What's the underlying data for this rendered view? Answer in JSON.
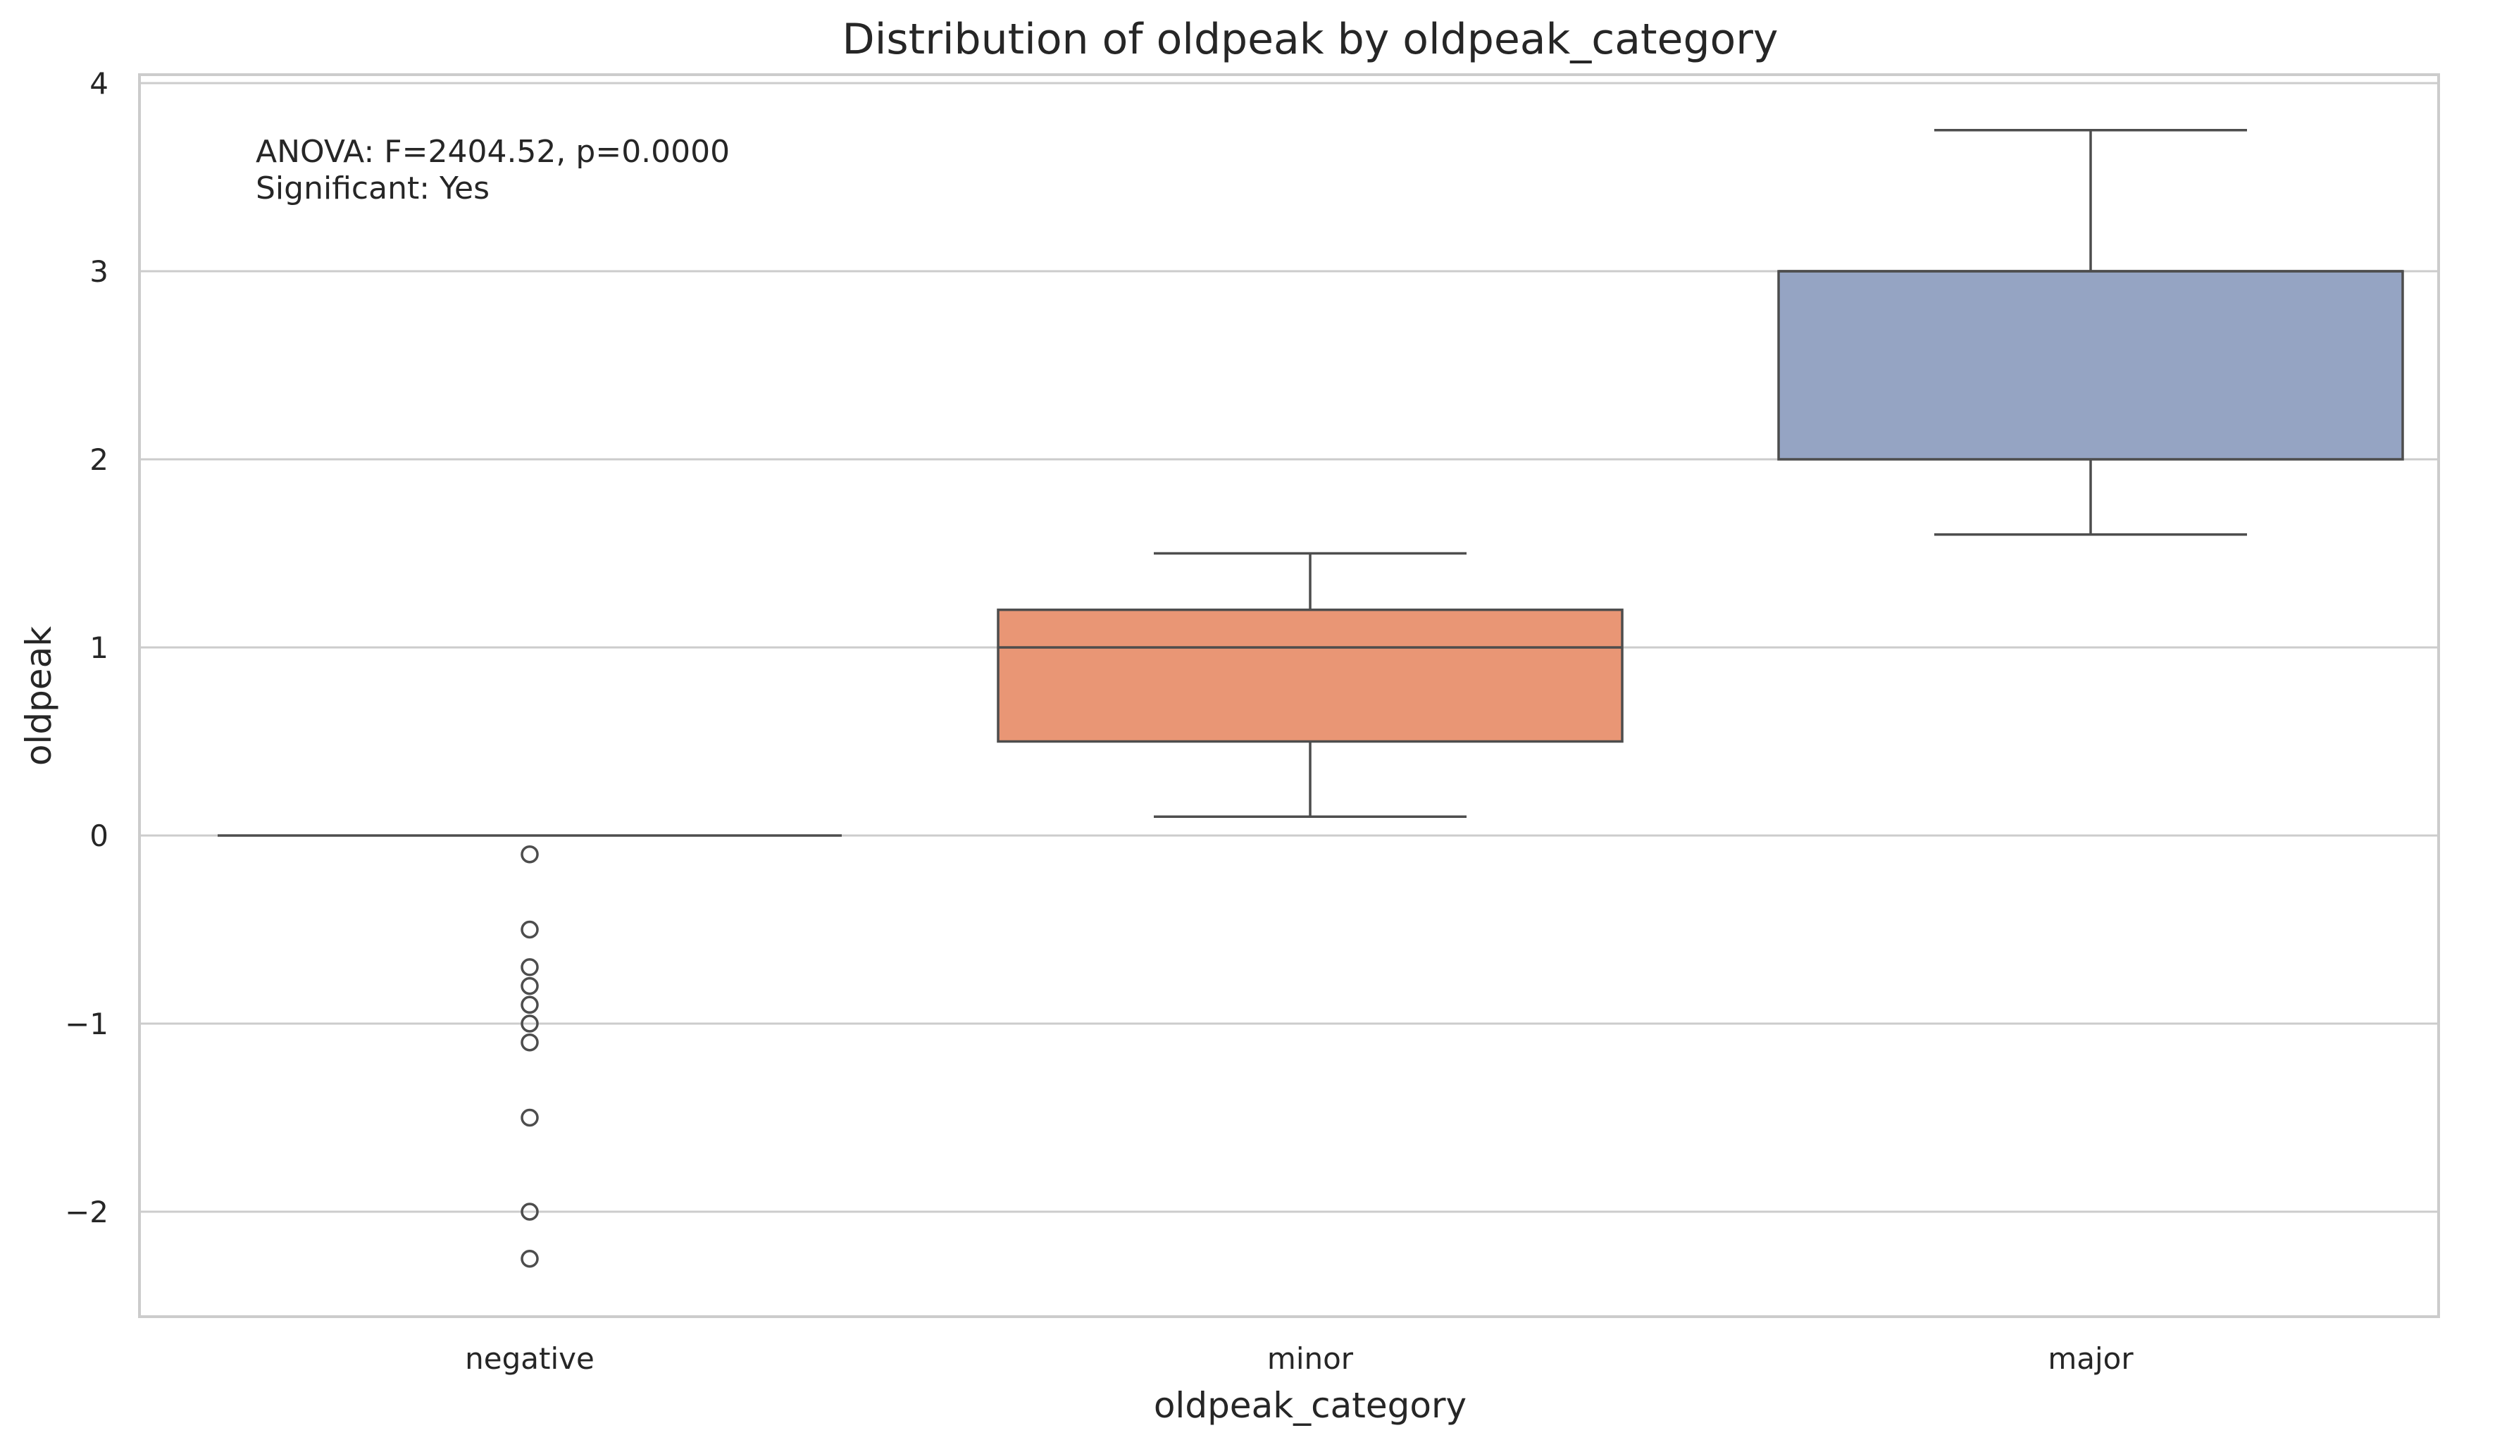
{
  "chart_data": {
    "type": "box",
    "title": "Distribution of oldpeak by oldpeak_category",
    "xlabel": "oldpeak_category",
    "ylabel": "oldpeak",
    "ylim": [
      -2.55,
      4.05
    ],
    "yticks": [
      -2,
      -1,
      0,
      1,
      2,
      3,
      4
    ],
    "ytick_labels": [
      "−2",
      "−1",
      "0",
      "1",
      "2",
      "3",
      "4"
    ],
    "grid": true,
    "annotation": [
      "ANOVA: F=2404.52, p=0.0000",
      "Significant: Yes"
    ],
    "categories": [
      "negative",
      "minor",
      "major"
    ],
    "boxes": [
      {
        "category": "negative",
        "whisker_low": 0,
        "q1": 0,
        "median": 0,
        "q3": 0,
        "whisker_high": 0,
        "fliers": [
          -0.1,
          -0.5,
          -0.7,
          -0.8,
          -0.9,
          -1.0,
          -1.1,
          -1.5,
          -2.0,
          -2.25
        ],
        "color": "#66c2a5"
      },
      {
        "category": "minor",
        "whisker_low": 0.1,
        "q1": 0.5,
        "median": 1.0,
        "q3": 1.2,
        "whisker_high": 1.5,
        "fliers": [],
        "color": "#e99675"
      },
      {
        "category": "major",
        "whisker_low": 1.6,
        "q1": 2.0,
        "median": 3.0,
        "q3": 3.0,
        "whisker_high": 3.75,
        "fliers": [],
        "color": "#95a4c3"
      }
    ]
  }
}
